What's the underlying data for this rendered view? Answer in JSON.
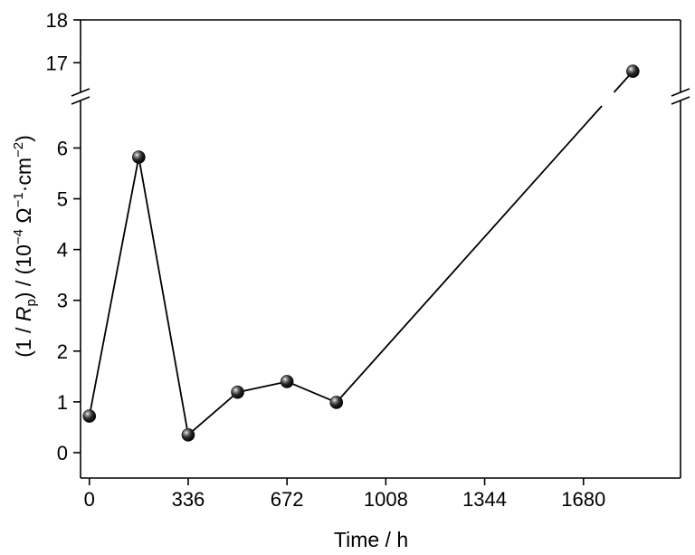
{
  "chart_data": {
    "type": "line",
    "xlabel": "Time / h",
    "ylabel": "(1 / Rp) / (10−4 Ω−1·cm−2)",
    "ylabel_parts": [
      "(1 / ",
      "R",
      "p",
      ") / (10",
      "−4",
      " Ω",
      "−1",
      "·cm",
      "−2",
      ")"
    ],
    "x_ticks": [
      0,
      336,
      672,
      1008,
      1344,
      1680
    ],
    "y_ticks_lower": [
      0,
      1,
      2,
      3,
      4,
      5,
      6
    ],
    "y_ticks_upper": [
      17,
      18
    ],
    "xlim": [
      -30,
      2010
    ],
    "ylim_lower": [
      -0.5,
      6.9
    ],
    "ylim_upper": [
      16.35,
      18.0
    ],
    "y_axis_break": true,
    "grid": false,
    "legend": "none",
    "marker": "sphere",
    "colors": {
      "line": "#000000",
      "marker": "#111111",
      "axis": "#000000"
    },
    "series": [
      {
        "x": [
          0,
          168,
          336,
          504,
          672,
          840,
          1848
        ],
        "y": [
          0.72,
          5.82,
          0.35,
          1.19,
          1.4,
          0.99,
          16.8
        ]
      }
    ]
  }
}
